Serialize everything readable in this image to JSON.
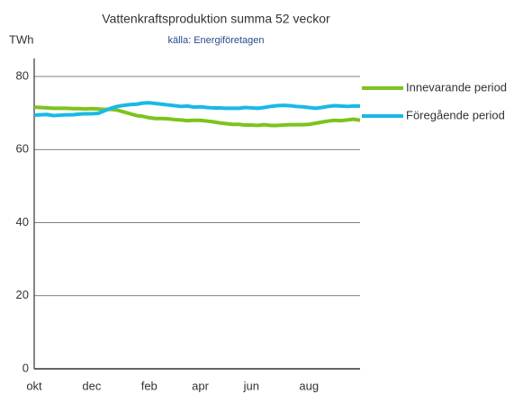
{
  "chart_data": {
    "type": "line",
    "title": "Vattenkraftsproduktion  summa 52 veckor",
    "subtitle": "källa: Energiföretagen",
    "y_label": "TWh",
    "categories": [
      "okt",
      null,
      null,
      null,
      null,
      null,
      null,
      null,
      null,
      "dec",
      null,
      null,
      null,
      null,
      null,
      null,
      null,
      null,
      "feb",
      null,
      null,
      null,
      null,
      null,
      null,
      null,
      "apr",
      null,
      null,
      null,
      null,
      null,
      null,
      null,
      "jun",
      null,
      null,
      null,
      null,
      null,
      null,
      null,
      null,
      "aug",
      null,
      null,
      null,
      null,
      null,
      null,
      null,
      null
    ],
    "series": [
      {
        "name": "Innevarande period",
        "color": "#7dc31d",
        "values": [
          71.6,
          71.5,
          71.4,
          71.3,
          71.3,
          71.3,
          71.2,
          71.2,
          71.1,
          71.2,
          71.1,
          71.0,
          71.0,
          70.8,
          70.3,
          69.8,
          69.3,
          69.1,
          68.7,
          68.5,
          68.5,
          68.4,
          68.2,
          68.1,
          67.9,
          68.0,
          68.0,
          67.8,
          67.6,
          67.3,
          67.1,
          66.9,
          66.9,
          66.7,
          66.7,
          66.6,
          66.8,
          66.6,
          66.6,
          66.7,
          66.8,
          66.8,
          66.8,
          66.9,
          67.2,
          67.5,
          67.8,
          68.0,
          67.9,
          68.1,
          68.3,
          68.0
        ]
      },
      {
        "name": "Föregående period",
        "color": "#1ab8e8",
        "values": [
          69.4,
          69.5,
          69.6,
          69.3,
          69.4,
          69.5,
          69.5,
          69.7,
          69.8,
          69.8,
          69.9,
          70.6,
          71.3,
          71.8,
          72.1,
          72.3,
          72.4,
          72.7,
          72.8,
          72.6,
          72.4,
          72.2,
          72.0,
          71.8,
          71.9,
          71.6,
          71.7,
          71.5,
          71.4,
          71.4,
          71.3,
          71.3,
          71.3,
          71.5,
          71.4,
          71.3,
          71.5,
          71.8,
          72.0,
          72.1,
          72.0,
          71.8,
          71.7,
          71.5,
          71.3,
          71.5,
          71.8,
          72.0,
          71.9,
          71.8,
          71.9,
          71.9
        ]
      }
    ],
    "ylim": [
      0,
      80
    ],
    "yticks": [
      0,
      20,
      40,
      60,
      80
    ],
    "grid": true,
    "legend": "right"
  }
}
